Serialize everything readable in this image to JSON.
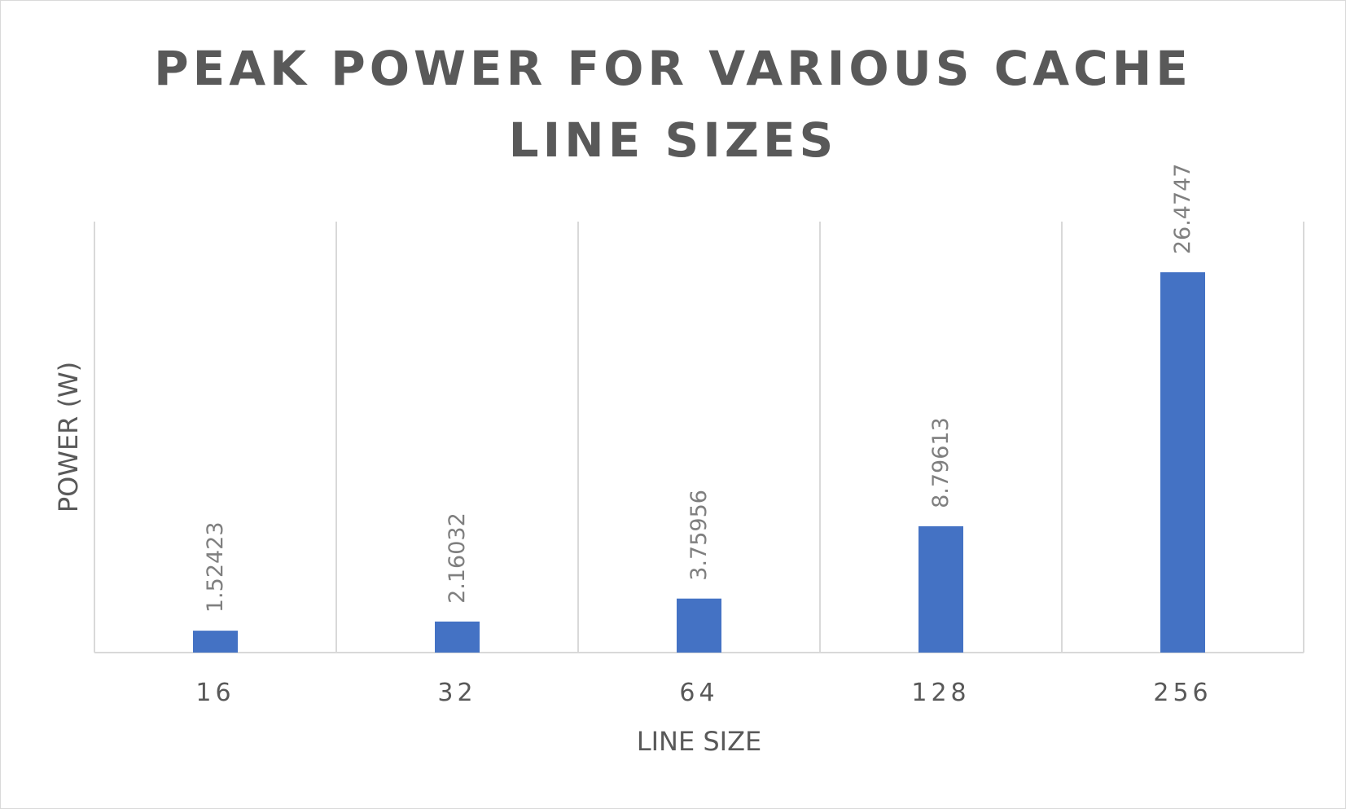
{
  "chart_data": {
    "type": "bar",
    "title": "PEAK POWER FOR VARIOUS CACHE LINE SIZES",
    "xlabel": "LINE SIZE",
    "ylabel": "POWER (W)",
    "categories": [
      "16",
      "32",
      "64",
      "128",
      "256"
    ],
    "values": [
      1.52423,
      2.16032,
      3.75956,
      8.79613,
      26.4747
    ],
    "data_labels": [
      "1.52423",
      "2.16032",
      "3.75956",
      "8.79613",
      "26.4747"
    ],
    "ylim": [
      0,
      30
    ],
    "y_axis_tick_labels_shown": false,
    "grid": "vertical",
    "legend": "none",
    "colors": {
      "bar": "#4472C4",
      "grid": "#d9d9d9",
      "text": "#595959",
      "data_label": "#7f7f7f"
    }
  }
}
